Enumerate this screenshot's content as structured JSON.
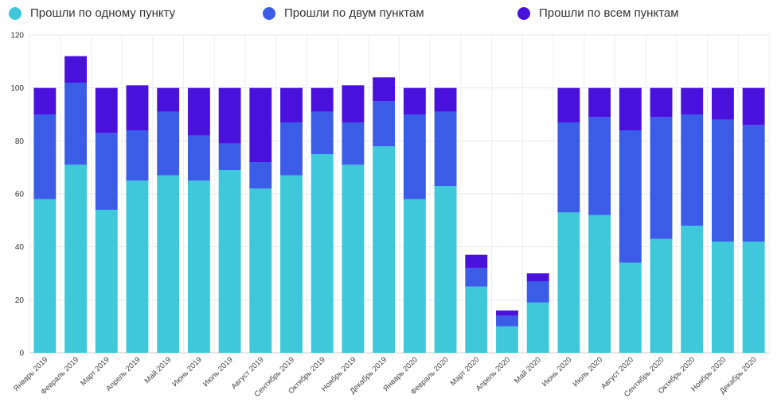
{
  "chart_data": {
    "type": "bar",
    "stacked": true,
    "categories": [
      "Январь 2019",
      "Февраль 2019",
      "Март 2019",
      "Апрель 2019",
      "Май 2019",
      "Июнь 2019",
      "Июль 2019",
      "Август 2019",
      "Сентябрь 2019",
      "Октябрь 2019",
      "Ноябрь 2019",
      "Декабрь 2019",
      "Январь 2020",
      "Февраль 2020",
      "Март 2020",
      "Апрель 2020",
      "Май 2020",
      "Июнь 2020",
      "Июль 2020",
      "Август 2020",
      "Сентябрь 2020",
      "Октябрь 2020",
      "Ноябрь 2020",
      "Декабрь 2020"
    ],
    "series": [
      {
        "name": "Прошли по одному пункту",
        "color": "#3ec8da",
        "values": [
          58,
          71,
          54,
          65,
          67,
          65,
          69,
          62,
          67,
          75,
          71,
          78,
          58,
          63,
          25,
          10,
          19,
          53,
          52,
          34,
          43,
          48,
          42,
          42
        ]
      },
      {
        "name": "Прошли по двум пунктам",
        "color": "#3a5ce6",
        "values": [
          32,
          31,
          29,
          19,
          24,
          17,
          10,
          10,
          20,
          16,
          16,
          17,
          32,
          28,
          7,
          4,
          8,
          34,
          37,
          50,
          46,
          42,
          46,
          44
        ]
      },
      {
        "name": "Прошли по всем пунктам",
        "color": "#4a10dc",
        "values": [
          10,
          10,
          17,
          17,
          9,
          18,
          21,
          28,
          13,
          9,
          14,
          9,
          10,
          9,
          5,
          2,
          3,
          13,
          11,
          16,
          11,
          10,
          12,
          14
        ]
      }
    ],
    "ylim": [
      0,
      120
    ],
    "yticks": [
      "0",
      "20",
      "40",
      "60",
      "80",
      "100",
      "120"
    ],
    "grid": true,
    "legend_position": "top"
  }
}
